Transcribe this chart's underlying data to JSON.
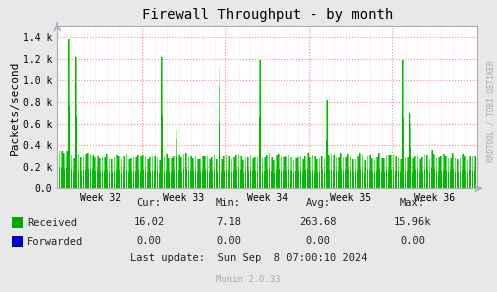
{
  "title": "Firewall Throughput - by month",
  "ylabel": "Packets/second",
  "background_color": "#e8e8e8",
  "plot_bg_color": "#ffffff",
  "grid_color_h": "#ffaaaa",
  "grid_color_v": "#cccccc",
  "ylim": [
    0,
    1500
  ],
  "yticks": [
    0,
    200,
    400,
    600,
    800,
    1000,
    1200,
    1400
  ],
  "ytick_labels": [
    "0.0",
    "0.2 k",
    "0.4 k",
    "0.6 k",
    "0.8 k",
    "1.0 k",
    "1.2 k",
    "1.4 k"
  ],
  "week_labels": [
    "Week 32",
    "Week 33",
    "Week 34",
    "Week 35",
    "Week 36"
  ],
  "received_color_dark": "#00aa00",
  "received_color_light": "#ccffcc",
  "forwarded_color": "#0000cc",
  "legend_received": "Received",
  "legend_forwarded": "Forwarded",
  "stats_cur_received": "16.02",
  "stats_min_received": "7.18",
  "stats_avg_received": "263.68",
  "stats_max_received": "15.96k",
  "stats_cur_forwarded": "0.00",
  "stats_min_forwarded": "0.00",
  "stats_avg_forwarded": "0.00",
  "stats_max_forwarded": "0.00",
  "last_update": "Last update:  Sun Sep  8 07:00:10 2024",
  "munin_version": "Munin 2.0.33",
  "rrdtool_label": "RRDTOOL / TOBI OETIKER",
  "n_weeks": 5,
  "seed": 42
}
